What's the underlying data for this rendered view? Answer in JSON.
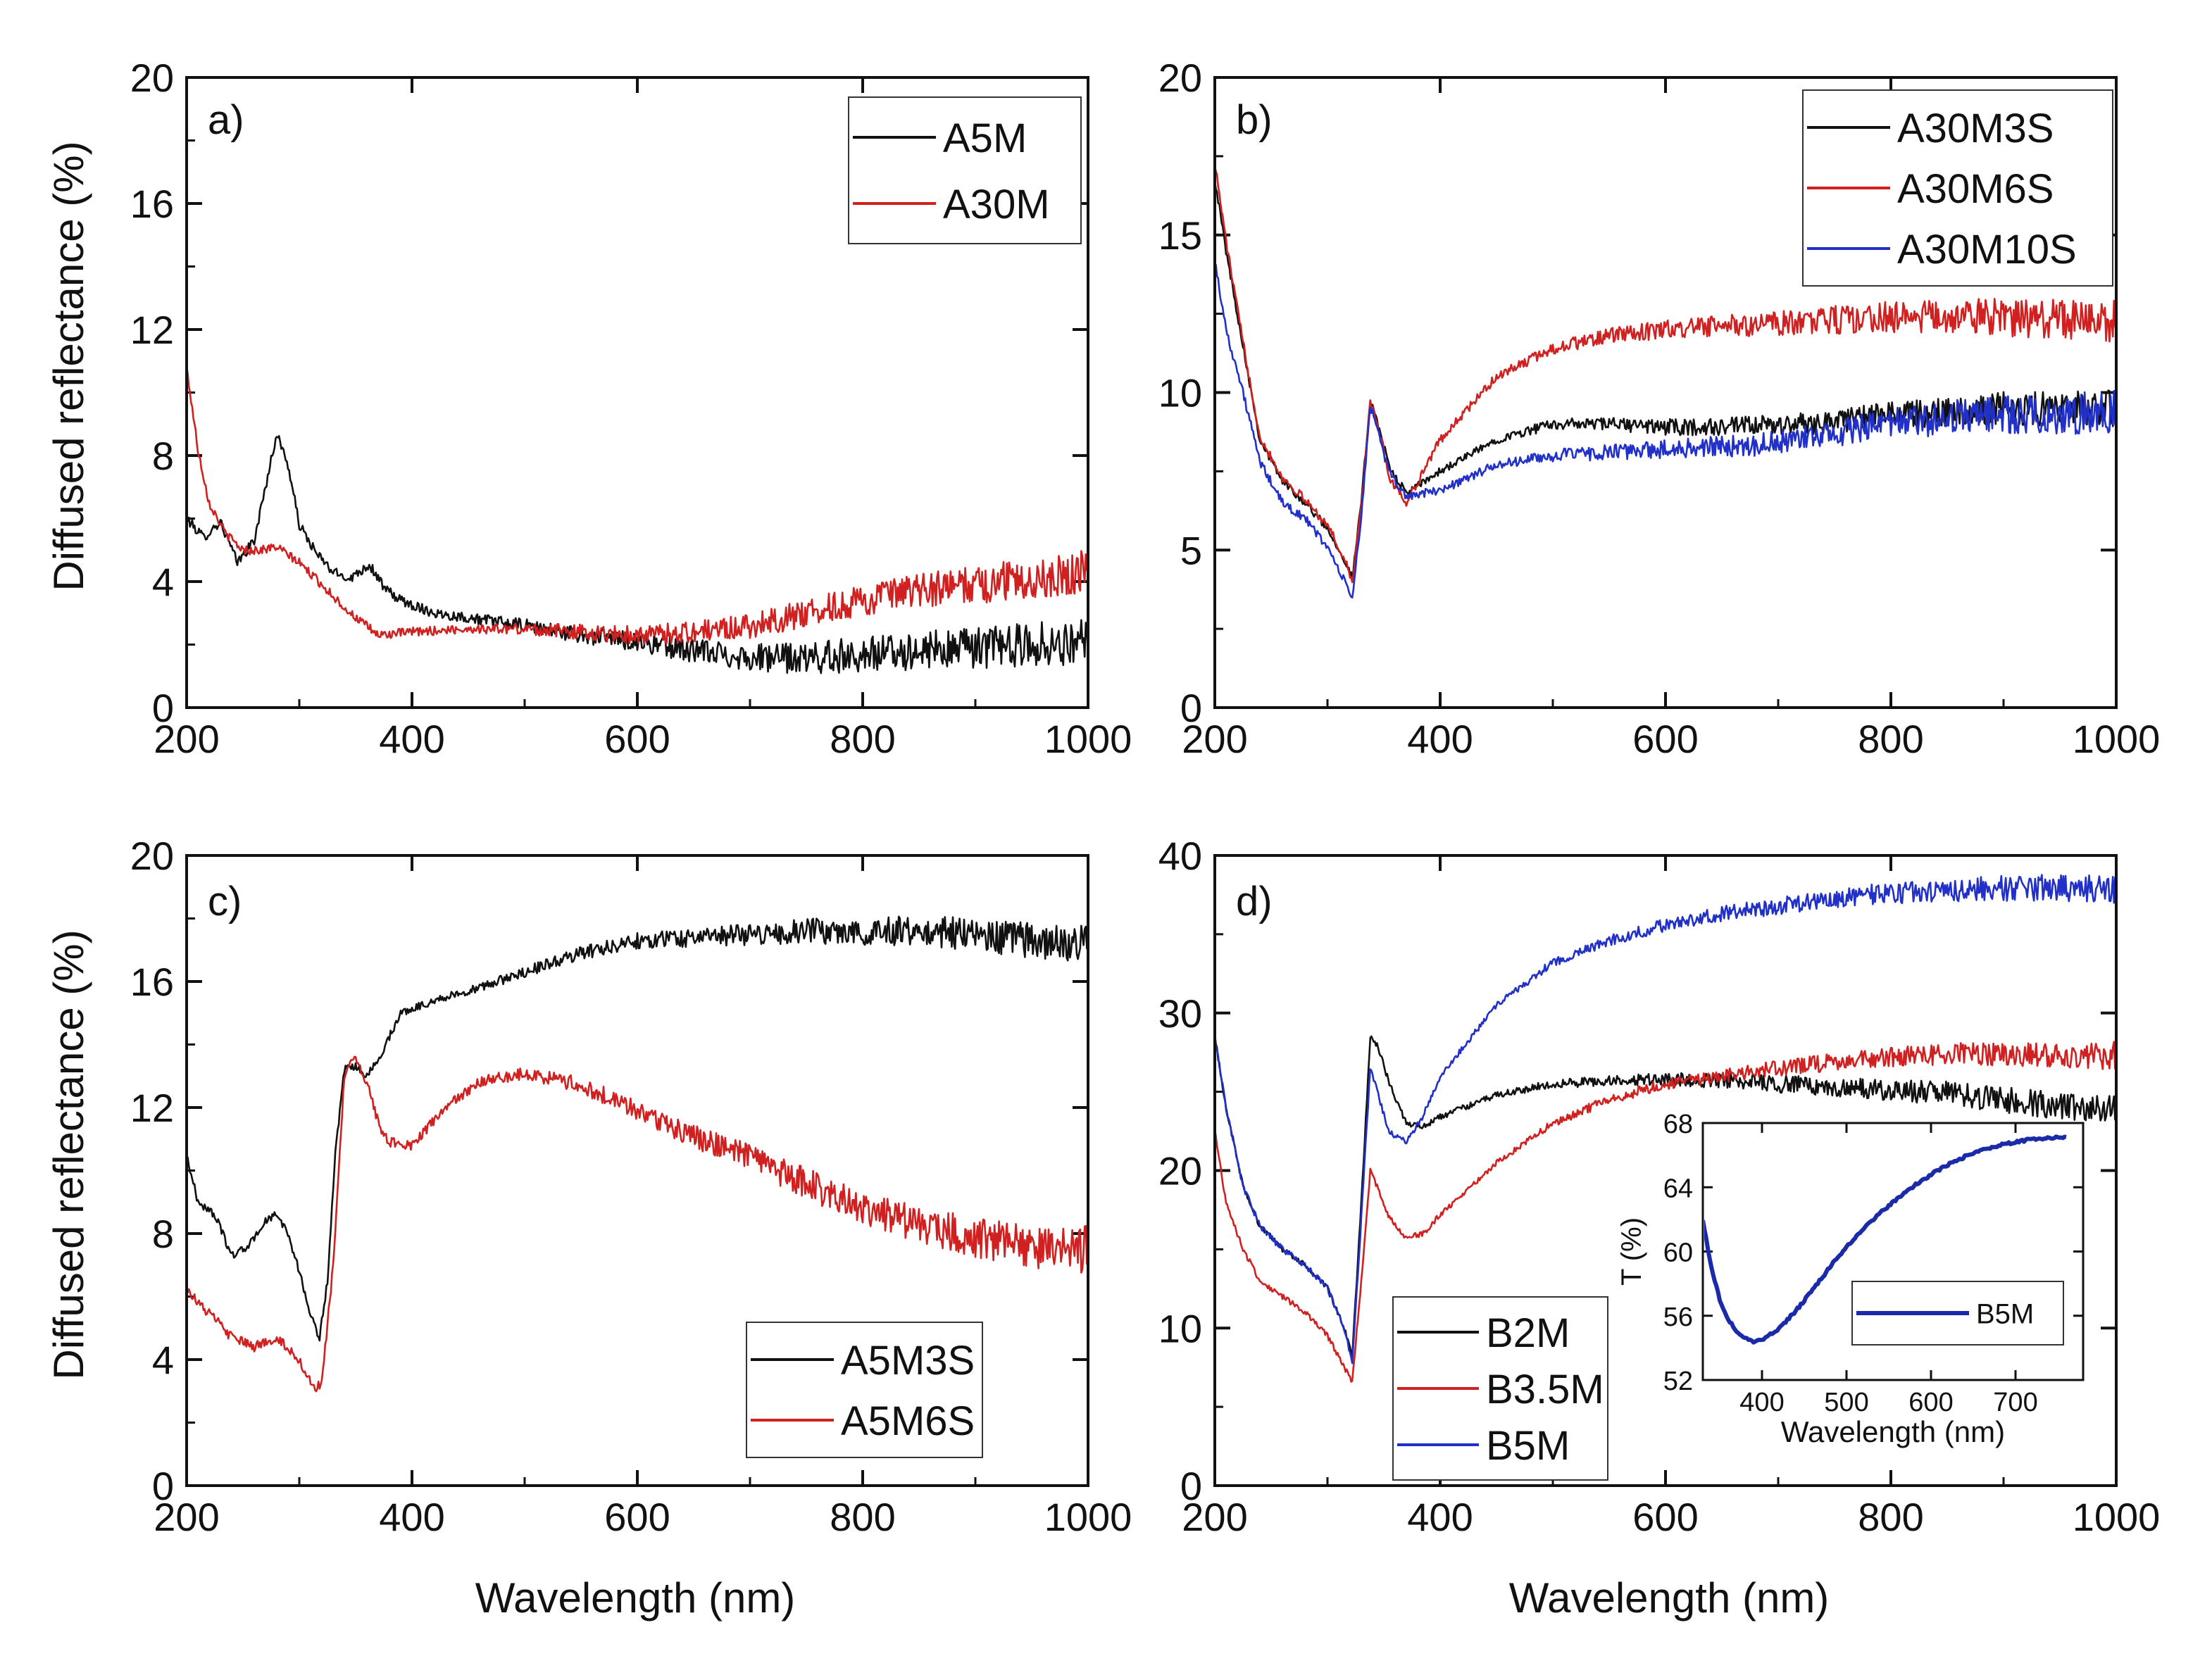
{
  "figure": {
    "y_axis_label_top": "Diffused reflectance (%)",
    "y_axis_label_bottom": "Diffused reflectance (%)",
    "x_axis_label": "Wavelength (nm)"
  },
  "chart_data": [
    {
      "id": "a",
      "panel_label": "a)",
      "type": "line",
      "xlabel": "",
      "ylabel": "Diffused reflectance (%)",
      "xlim": [
        200,
        1000
      ],
      "ylim": [
        0,
        20
      ],
      "xticks": [
        200,
        400,
        600,
        800,
        1000
      ],
      "yticks": [
        0,
        4,
        8,
        12,
        16,
        20
      ],
      "legend_position": "top-right",
      "series": [
        {
          "name": "A5M",
          "color": "#111111",
          "noise": 0.45,
          "x": [
            200,
            215,
            230,
            245,
            260,
            270,
            280,
            290,
            300,
            315,
            330,
            345,
            360,
            365,
            375,
            390,
            420,
            460,
            500,
            550,
            600,
            650,
            700,
            750,
            800,
            850,
            900,
            950,
            1000
          ],
          "y": [
            6.0,
            5.4,
            5.9,
            4.6,
            5.3,
            7.0,
            8.7,
            7.7,
            5.8,
            4.9,
            4.3,
            4.1,
            4.5,
            4.4,
            3.8,
            3.4,
            3.0,
            2.8,
            2.6,
            2.3,
            2.1,
            1.8,
            1.6,
            1.55,
            1.7,
            1.8,
            1.9,
            2.0,
            2.1
          ]
        },
        {
          "name": "A30M",
          "color": "#d02020",
          "noise": 0.4,
          "x": [
            200,
            210,
            220,
            235,
            250,
            265,
            280,
            300,
            320,
            345,
            370,
            400,
            450,
            500,
            550,
            600,
            650,
            700,
            750,
            800,
            850,
            900,
            950,
            1000
          ],
          "y": [
            10.8,
            8.2,
            6.5,
            5.5,
            5.0,
            5.0,
            5.1,
            4.6,
            3.9,
            3.0,
            2.3,
            2.4,
            2.5,
            2.5,
            2.4,
            2.3,
            2.4,
            2.6,
            3.0,
            3.4,
            3.7,
            3.9,
            4.1,
            4.3
          ]
        }
      ]
    },
    {
      "id": "b",
      "panel_label": "b)",
      "type": "line",
      "xlabel": "",
      "ylabel": "",
      "xlim": [
        200,
        1000
      ],
      "ylim": [
        0,
        20
      ],
      "xticks": [
        200,
        400,
        600,
        800,
        1000
      ],
      "yticks": [
        0,
        5,
        10,
        15,
        20
      ],
      "legend_position": "top-right",
      "series": [
        {
          "name": "A30M3S",
          "color": "#111111",
          "noise": 0.35,
          "x": [
            200,
            210,
            225,
            240,
            260,
            280,
            300,
            315,
            322,
            330,
            338,
            345,
            355,
            370,
            400,
            450,
            500,
            550,
            600,
            650,
            700,
            750,
            800,
            850,
            900,
            950,
            1000
          ],
          "y": [
            16.8,
            14.5,
            11.5,
            8.5,
            7.2,
            6.5,
            5.7,
            4.7,
            4.1,
            6.5,
            9.8,
            9.0,
            7.6,
            6.8,
            7.5,
            8.5,
            9.0,
            9.0,
            8.9,
            8.9,
            8.95,
            9.1,
            9.3,
            9.4,
            9.5,
            9.5,
            9.5
          ]
        },
        {
          "name": "A30M6S",
          "color": "#d02020",
          "noise": 0.4,
          "x": [
            200,
            210,
            225,
            240,
            260,
            280,
            300,
            315,
            322,
            330,
            338,
            345,
            355,
            370,
            400,
            450,
            500,
            550,
            600,
            650,
            700,
            750,
            800,
            850,
            900,
            950,
            1000
          ],
          "y": [
            17.3,
            14.8,
            11.6,
            8.6,
            7.3,
            6.6,
            5.8,
            4.7,
            4.0,
            6.4,
            9.7,
            8.9,
            7.3,
            6.5,
            8.5,
            10.5,
            11.4,
            11.8,
            12.0,
            12.1,
            12.2,
            12.3,
            12.4,
            12.4,
            12.4,
            12.3,
            12.3
          ]
        },
        {
          "name": "A30M10S",
          "color": "#2030c8",
          "noise": 0.4,
          "x": [
            200,
            210,
            225,
            240,
            260,
            280,
            300,
            315,
            322,
            330,
            338,
            345,
            355,
            370,
            400,
            450,
            500,
            550,
            600,
            650,
            700,
            750,
            800,
            850,
            900,
            950,
            1000
          ],
          "y": [
            14.2,
            12.0,
            10.0,
            7.8,
            6.5,
            6.0,
            5.1,
            4.0,
            3.5,
            6.0,
            9.6,
            8.8,
            7.4,
            6.7,
            6.9,
            7.7,
            8.0,
            8.1,
            8.2,
            8.3,
            8.4,
            8.7,
            9.0,
            9.2,
            9.3,
            9.3,
            9.4
          ]
        }
      ]
    },
    {
      "id": "c",
      "panel_label": "c)",
      "type": "line",
      "xlabel": "Wavelength (nm)",
      "ylabel": "Diffused reflectance (%)",
      "xlim": [
        200,
        1000
      ],
      "ylim": [
        0,
        20
      ],
      "xticks": [
        200,
        400,
        600,
        800,
        1000
      ],
      "yticks": [
        0,
        4,
        8,
        12,
        16,
        20
      ],
      "legend_position": "bottom-right",
      "series": [
        {
          "name": "A5M3S",
          "color": "#111111",
          "noise": 0.35,
          "x": [
            200,
            210,
            225,
            240,
            255,
            270,
            280,
            290,
            300,
            310,
            318,
            325,
            332,
            340,
            350,
            360,
            370,
            390,
            420,
            460,
            500,
            550,
            600,
            650,
            700,
            750,
            800,
            850,
            900,
            950,
            1000
          ],
          "y": [
            10.5,
            9.0,
            8.6,
            7.3,
            7.6,
            8.4,
            8.6,
            8.0,
            6.8,
            5.4,
            4.7,
            6.5,
            10.5,
            13.2,
            13.3,
            13.0,
            13.5,
            15.0,
            15.4,
            15.8,
            16.3,
            16.9,
            17.3,
            17.4,
            17.5,
            17.6,
            17.6,
            17.6,
            17.5,
            17.3,
            17.2
          ]
        },
        {
          "name": "A5M6S",
          "color": "#d02020",
          "noise": 0.45,
          "x": [
            200,
            210,
            225,
            240,
            260,
            280,
            300,
            312,
            320,
            330,
            340,
            350,
            360,
            370,
            380,
            400,
            430,
            460,
            500,
            550,
            600,
            650,
            700,
            750,
            800,
            850,
            900,
            950,
            1000
          ],
          "y": [
            6.3,
            5.8,
            5.3,
            4.7,
            4.4,
            4.7,
            4.0,
            3.1,
            3.2,
            7.0,
            13.0,
            13.6,
            12.8,
            11.5,
            10.9,
            10.8,
            12.0,
            12.8,
            13.1,
            12.7,
            11.9,
            11.1,
            10.4,
            9.6,
            8.8,
            8.3,
            7.9,
            7.6,
            7.5
          ]
        }
      ]
    },
    {
      "id": "d",
      "panel_label": "d)",
      "type": "line",
      "xlabel": "Wavelength (nm)",
      "ylabel": "",
      "xlim": [
        200,
        1000
      ],
      "ylim": [
        0,
        40
      ],
      "xticks": [
        200,
        400,
        600,
        800,
        1000
      ],
      "yticks": [
        0,
        10,
        20,
        30,
        40
      ],
      "legend_position": "bottom-center",
      "series": [
        {
          "name": "B2M",
          "color": "#111111",
          "noise": 0.55,
          "x": [
            200,
            210,
            225,
            240,
            260,
            280,
            300,
            315,
            322,
            330,
            338,
            345,
            355,
            370,
            385,
            400,
            450,
            500,
            550,
            600,
            650,
            700,
            750,
            800,
            850,
            900,
            950,
            1000
          ],
          "y": [
            28.5,
            24.0,
            19.0,
            16.5,
            15.0,
            14.0,
            12.5,
            10.0,
            8.2,
            18.0,
            28.5,
            27.8,
            25.5,
            23.0,
            22.8,
            23.4,
            24.8,
            25.5,
            25.7,
            25.8,
            25.7,
            25.5,
            25.3,
            25.1,
            24.9,
            24.5,
            24.1,
            23.8
          ]
        },
        {
          "name": "B3.5M",
          "color": "#d02020",
          "noise": 0.5,
          "x": [
            200,
            210,
            225,
            240,
            260,
            280,
            300,
            315,
            322,
            330,
            338,
            345,
            355,
            370,
            385,
            400,
            450,
            500,
            550,
            600,
            650,
            700,
            750,
            800,
            850,
            900,
            950,
            1000
          ],
          "y": [
            22.5,
            18.0,
            15.0,
            13.0,
            12.0,
            11.0,
            9.5,
            7.5,
            6.6,
            13.0,
            20.0,
            18.8,
            17.0,
            15.7,
            16.0,
            17.2,
            20.5,
            23.0,
            24.5,
            25.5,
            26.0,
            26.5,
            26.9,
            27.2,
            27.4,
            27.4,
            27.3,
            27.3
          ]
        },
        {
          "name": "B5M",
          "color": "#2030c8",
          "noise": 0.55,
          "x": [
            200,
            210,
            225,
            240,
            260,
            280,
            300,
            315,
            322,
            330,
            338,
            345,
            355,
            370,
            385,
            400,
            450,
            500,
            550,
            600,
            650,
            700,
            750,
            800,
            850,
            900,
            950,
            1000
          ],
          "y": [
            28.5,
            24.0,
            19.0,
            16.5,
            15.0,
            14.0,
            12.5,
            10.0,
            7.7,
            17.0,
            26.5,
            24.8,
            22.4,
            21.8,
            23.5,
            26.0,
            30.5,
            33.2,
            34.6,
            35.6,
            36.3,
            36.8,
            37.3,
            37.6,
            37.8,
            37.9,
            37.9,
            37.9
          ]
        }
      ]
    },
    {
      "id": "d-inset",
      "panel_label": "",
      "type": "line",
      "xlabel": "Wavelength (nm)",
      "ylabel": "T (%)",
      "xlim": [
        330,
        780
      ],
      "ylim": [
        52,
        68
      ],
      "xticks": [
        400,
        500,
        600,
        700
      ],
      "yticks": [
        52,
        56,
        60,
        64,
        68
      ],
      "legend_position": "right",
      "series": [
        {
          "name": "B5M",
          "color": "#1a2aa8",
          "noise": 0.08,
          "x": [
            330,
            340,
            350,
            360,
            370,
            380,
            390,
            400,
            420,
            440,
            460,
            480,
            500,
            520,
            540,
            560,
            580,
            600,
            620,
            640,
            660,
            680,
            700,
            720,
            740,
            760
          ],
          "y": [
            62.0,
            59.0,
            57.0,
            55.8,
            55.0,
            54.6,
            54.4,
            54.5,
            55.2,
            56.3,
            57.6,
            59.0,
            60.3,
            61.4,
            62.4,
            63.3,
            64.1,
            64.8,
            65.4,
            65.9,
            66.3,
            66.6,
            66.8,
            67.0,
            67.1,
            67.1
          ]
        }
      ]
    }
  ]
}
